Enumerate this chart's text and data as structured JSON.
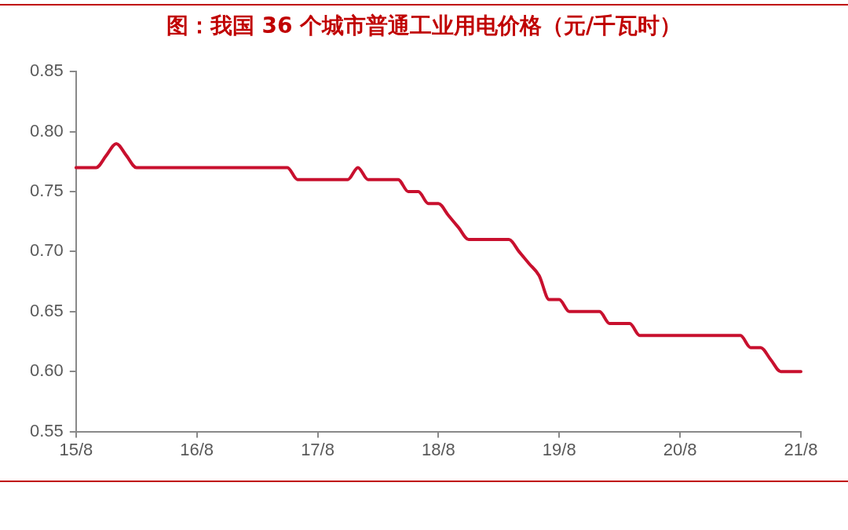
{
  "chart_data": {
    "type": "line",
    "title": "图：我国 36 个城市普通工业用电价格（元/千瓦时）",
    "categories": [
      "15/8",
      null,
      null,
      null,
      null,
      null,
      null,
      null,
      null,
      null,
      null,
      null,
      "16/8",
      null,
      null,
      null,
      null,
      null,
      null,
      null,
      null,
      null,
      null,
      null,
      "17/8",
      null,
      null,
      null,
      null,
      null,
      null,
      null,
      null,
      null,
      null,
      null,
      "18/8",
      null,
      null,
      null,
      null,
      null,
      null,
      null,
      null,
      null,
      null,
      null,
      "19/8",
      null,
      null,
      null,
      null,
      null,
      null,
      null,
      null,
      null,
      null,
      null,
      "20/8",
      null,
      null,
      null,
      null,
      null,
      null,
      null,
      null,
      null,
      null,
      null,
      "21/8"
    ],
    "series": [
      {
        "color": "#c8102e",
        "values": [
          0.77,
          0.77,
          0.77,
          0.78,
          0.79,
          0.78,
          0.77,
          0.77,
          0.77,
          0.77,
          0.77,
          0.77,
          0.77,
          0.77,
          0.77,
          0.77,
          0.77,
          0.77,
          0.77,
          0.77,
          0.77,
          0.77,
          0.76,
          0.76,
          0.76,
          0.76,
          0.76,
          0.76,
          0.77,
          0.76,
          0.76,
          0.76,
          0.76,
          0.75,
          0.75,
          0.74,
          0.74,
          0.73,
          0.72,
          0.71,
          0.71,
          0.71,
          0.71,
          0.71,
          0.7,
          0.69,
          0.68,
          0.66,
          0.66,
          0.65,
          0.65,
          0.65,
          0.65,
          0.64,
          0.64,
          0.64,
          0.63,
          0.63,
          0.63,
          0.63,
          0.63,
          0.63,
          0.63,
          0.63,
          0.63,
          0.63,
          0.63,
          0.62,
          0.62,
          0.61,
          0.6,
          0.6,
          0.6
        ]
      }
    ],
    "ylim": [
      0.55,
      0.85
    ],
    "yticks": [
      {
        "value": 0.55,
        "label": "0.55"
      },
      {
        "value": 0.6,
        "label": "0.60"
      },
      {
        "value": 0.65,
        "label": "0.65"
      },
      {
        "value": 0.7,
        "label": "0.70"
      },
      {
        "value": 0.75,
        "label": "0.75"
      },
      {
        "value": 0.8,
        "label": "0.80"
      },
      {
        "value": 0.85,
        "label": "0.85"
      }
    ],
    "grid": false,
    "legend": false,
    "marker": "none",
    "line_style": "solid"
  }
}
